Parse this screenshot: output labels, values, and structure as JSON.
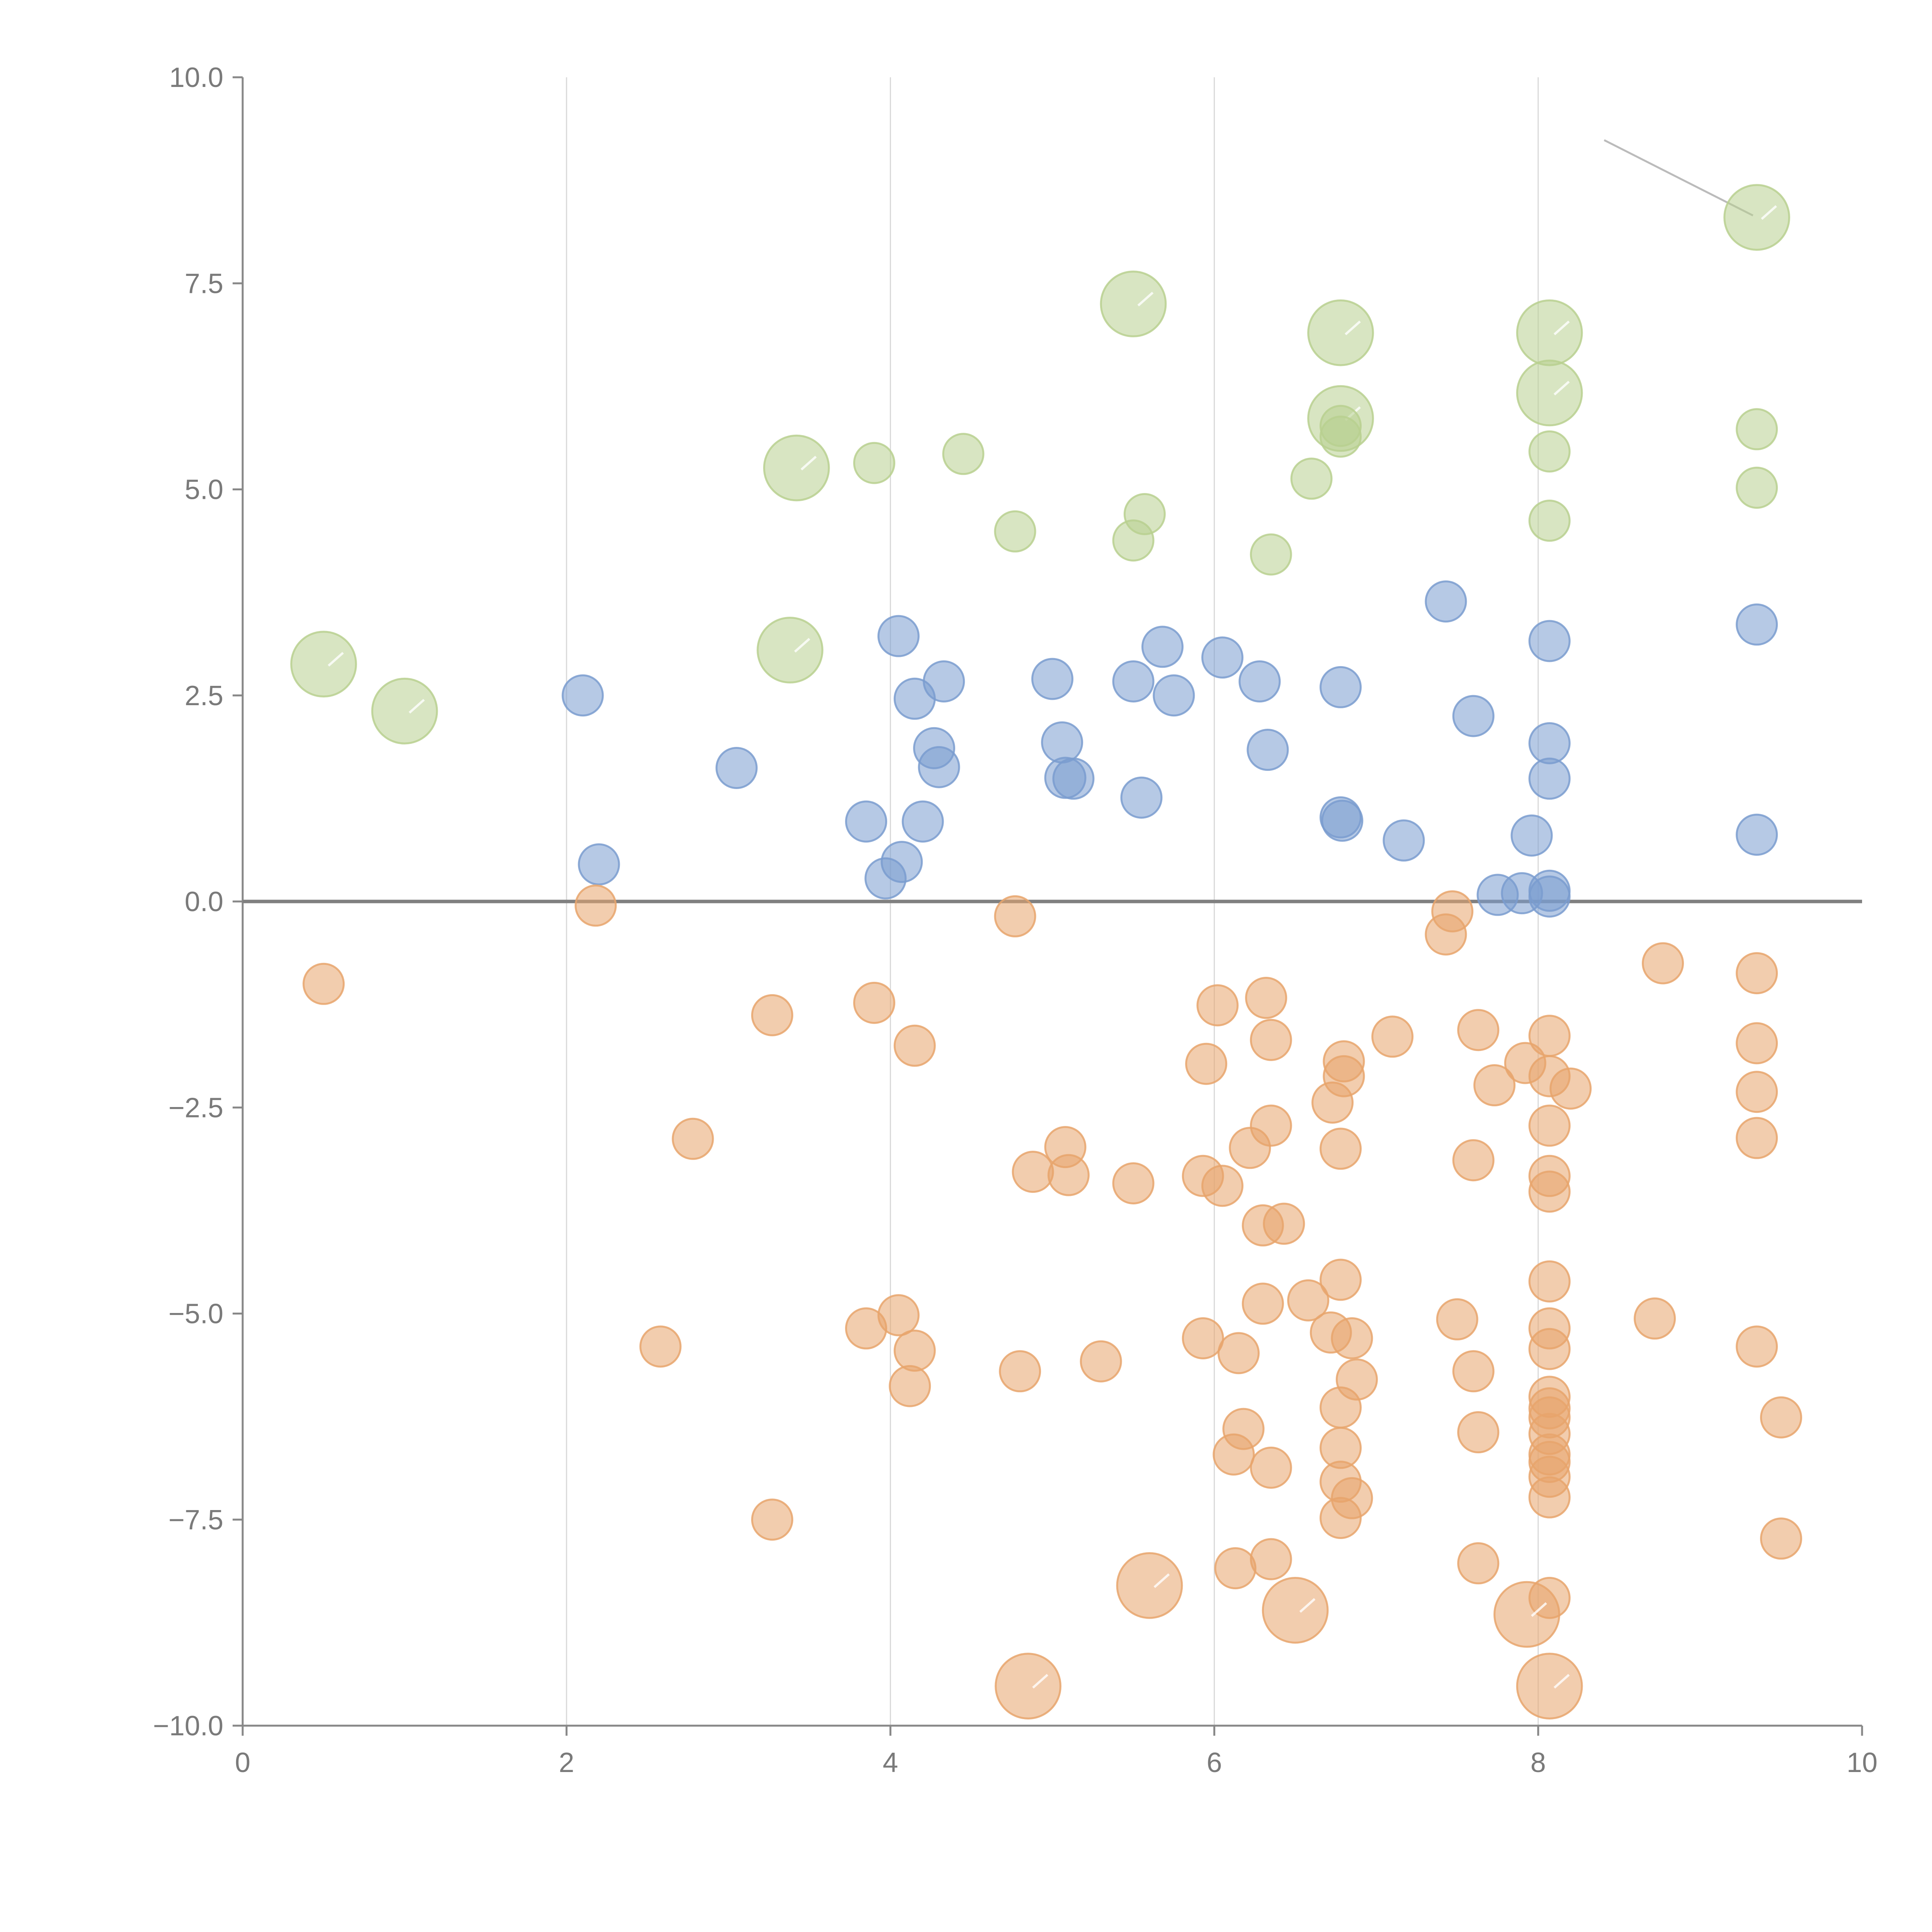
{
  "chart_data": {
    "type": "scatter",
    "title": "",
    "xlabel": "",
    "ylabel": "",
    "xlim": [
      0,
      10
    ],
    "ylim": [
      -10,
      10
    ],
    "grid": "vertical",
    "x_ticks": [
      "0",
      "2",
      "4",
      "6",
      "8",
      "10"
    ],
    "y_ticks": [
      "10.0",
      "7.5",
      "5.0",
      "2.5",
      "0.0",
      "−2.5",
      "−5.0",
      "−7.5",
      "−10.0"
    ],
    "series": [
      {
        "name": "blue",
        "color": "#7a9ccf",
        "points": [
          [
            2.1,
            2.5,
            1
          ],
          [
            2.2,
            0.45,
            1
          ],
          [
            3.05,
            1.62,
            1
          ],
          [
            3.85,
            0.97,
            1
          ],
          [
            3.97,
            0.28,
            1
          ],
          [
            4.05,
            3.22,
            1
          ],
          [
            4.07,
            0.48,
            1
          ],
          [
            4.15,
            2.46,
            1
          ],
          [
            4.2,
            0.97,
            1
          ],
          [
            4.27,
            1.86,
            1
          ],
          [
            4.3,
            1.63,
            1
          ],
          [
            4.33,
            2.67,
            1
          ],
          [
            5.0,
            2.7,
            1
          ],
          [
            5.06,
            1.93,
            1
          ],
          [
            5.08,
            1.5,
            1
          ],
          [
            5.13,
            1.49,
            1
          ],
          [
            5.5,
            2.67,
            1
          ],
          [
            5.55,
            1.26,
            1
          ],
          [
            5.68,
            3.09,
            1
          ],
          [
            5.75,
            2.5,
            1
          ],
          [
            6.05,
            2.96,
            1
          ],
          [
            6.28,
            2.67,
            1
          ],
          [
            6.33,
            1.84,
            1
          ],
          [
            6.78,
            2.6,
            1
          ],
          [
            6.78,
            1.02,
            1
          ],
          [
            6.79,
            0.98,
            1
          ],
          [
            7.17,
            0.74,
            1
          ],
          [
            7.43,
            3.64,
            1
          ],
          [
            7.6,
            2.25,
            1
          ],
          [
            7.75,
            0.08,
            1
          ],
          [
            7.9,
            0.1,
            1
          ],
          [
            7.96,
            0.8,
            1
          ],
          [
            8.07,
            3.16,
            1
          ],
          [
            8.07,
            1.92,
            1
          ],
          [
            8.07,
            1.49,
            1
          ],
          [
            8.07,
            0.13,
            1
          ],
          [
            8.07,
            0.06,
            1
          ],
          [
            9.35,
            3.36,
            1
          ],
          [
            9.35,
            0.81,
            1
          ]
        ]
      },
      {
        "name": "orange",
        "color": "#e8a46c",
        "points": [
          [
            0.5,
            -1.0,
            1
          ],
          [
            2.18,
            -0.05,
            1
          ],
          [
            2.58,
            -5.4,
            1
          ],
          [
            2.78,
            -2.88,
            1
          ],
          [
            3.27,
            -1.38,
            1
          ],
          [
            3.27,
            -7.5,
            1
          ],
          [
            3.85,
            -5.18,
            1
          ],
          [
            3.9,
            -1.23,
            1
          ],
          [
            4.05,
            -5.02,
            1
          ],
          [
            4.12,
            -5.88,
            1
          ],
          [
            4.15,
            -5.45,
            1
          ],
          [
            4.15,
            -1.75,
            1
          ],
          [
            4.77,
            -0.18,
            1
          ],
          [
            4.8,
            -5.7,
            1
          ],
          [
            4.88,
            -3.28,
            1
          ],
          [
            5.08,
            -2.98,
            1
          ],
          [
            5.1,
            -3.32,
            1
          ],
          [
            5.3,
            -5.58,
            1
          ],
          [
            5.5,
            -3.42,
            1
          ],
          [
            5.93,
            -3.33,
            1
          ],
          [
            5.93,
            -5.3,
            1
          ],
          [
            5.95,
            -1.97,
            1
          ],
          [
            6.02,
            -1.26,
            1
          ],
          [
            6.05,
            -3.45,
            1
          ],
          [
            6.12,
            -6.71,
            1
          ],
          [
            6.13,
            -8.09,
            1
          ],
          [
            6.15,
            -5.48,
            1
          ],
          [
            6.18,
            -6.4,
            1
          ],
          [
            6.22,
            -2.99,
            1
          ],
          [
            6.3,
            -3.93,
            1
          ],
          [
            6.3,
            -4.88,
            1
          ],
          [
            6.32,
            -1.17,
            1
          ],
          [
            6.35,
            -1.68,
            1
          ],
          [
            6.35,
            -2.72,
            1
          ],
          [
            6.35,
            -6.87,
            1
          ],
          [
            6.35,
            -7.98,
            1
          ],
          [
            6.43,
            -3.91,
            1
          ],
          [
            6.58,
            -4.84,
            1
          ],
          [
            6.72,
            -5.23,
            1
          ],
          [
            6.73,
            -2.44,
            1
          ],
          [
            6.78,
            -4.59,
            1
          ],
          [
            6.78,
            -3.0,
            1
          ],
          [
            6.78,
            -6.14,
            1
          ],
          [
            6.78,
            -6.63,
            1
          ],
          [
            6.78,
            -7.04,
            1
          ],
          [
            6.78,
            -7.48,
            1
          ],
          [
            6.8,
            -1.94,
            1
          ],
          [
            6.8,
            -2.12,
            1
          ],
          [
            6.85,
            -5.3,
            1
          ],
          [
            6.85,
            -7.24,
            1
          ],
          [
            6.88,
            -5.8,
            1
          ],
          [
            7.1,
            -1.64,
            1
          ],
          [
            7.43,
            -0.4,
            1
          ],
          [
            7.47,
            -0.12,
            1
          ],
          [
            7.5,
            -5.07,
            1
          ],
          [
            7.6,
            -3.14,
            1
          ],
          [
            7.6,
            -5.7,
            1
          ],
          [
            7.63,
            -1.56,
            1
          ],
          [
            7.63,
            -6.44,
            1
          ],
          [
            7.63,
            -8.03,
            1
          ],
          [
            7.73,
            -2.23,
            1
          ],
          [
            7.92,
            -1.96,
            1
          ],
          [
            8.07,
            -1.63,
            1
          ],
          [
            8.07,
            -2.12,
            1
          ],
          [
            8.07,
            -2.72,
            1
          ],
          [
            8.07,
            -3.33,
            1
          ],
          [
            8.07,
            -3.52,
            1
          ],
          [
            8.07,
            -4.61,
            1
          ],
          [
            8.07,
            -5.18,
            1
          ],
          [
            8.07,
            -5.43,
            1
          ],
          [
            8.07,
            -6.01,
            1
          ],
          [
            8.07,
            -6.15,
            1
          ],
          [
            8.07,
            -6.26,
            1
          ],
          [
            8.07,
            -6.46,
            1
          ],
          [
            8.07,
            -6.71,
            1
          ],
          [
            8.07,
            -6.8,
            1
          ],
          [
            8.07,
            -6.98,
            1
          ],
          [
            8.07,
            -7.23,
            1
          ],
          [
            8.07,
            -8.45,
            1
          ],
          [
            8.2,
            -2.27,
            1
          ],
          [
            8.72,
            -5.06,
            1
          ],
          [
            8.77,
            -0.75,
            1
          ],
          [
            9.35,
            -0.87,
            1
          ],
          [
            9.35,
            -1.72,
            1
          ],
          [
            9.35,
            -2.31,
            1
          ],
          [
            9.35,
            -2.87,
            1
          ],
          [
            9.35,
            -5.4,
            1
          ],
          [
            9.5,
            -6.26,
            1
          ],
          [
            9.5,
            -7.73,
            1
          ],
          [
            4.85,
            -9.52,
            2.6
          ],
          [
            5.6,
            -8.3,
            2.6
          ],
          [
            6.5,
            -8.6,
            2.6
          ],
          [
            7.93,
            -8.65,
            2.6
          ],
          [
            8.07,
            -9.52,
            2.6
          ]
        ]
      },
      {
        "name": "green",
        "color": "#b8d08f",
        "points": [
          [
            0.5,
            2.88,
            2.6
          ],
          [
            1.0,
            2.31,
            2.6
          ],
          [
            3.38,
            3.05,
            2.6
          ],
          [
            3.42,
            5.26,
            2.6
          ],
          [
            5.5,
            7.25,
            2.6
          ],
          [
            6.78,
            6.9,
            2.6
          ],
          [
            6.78,
            5.86,
            2.6
          ],
          [
            8.07,
            6.9,
            2.6
          ],
          [
            8.07,
            6.17,
            2.6
          ],
          [
            9.35,
            8.3,
            2.6
          ],
          [
            3.9,
            5.32,
            1
          ],
          [
            4.45,
            5.43,
            1
          ],
          [
            4.77,
            4.49,
            1
          ],
          [
            5.5,
            4.38,
            1
          ],
          [
            5.57,
            4.7,
            1
          ],
          [
            6.35,
            4.21,
            1
          ],
          [
            6.6,
            5.13,
            1
          ],
          [
            6.78,
            5.77,
            1
          ],
          [
            6.78,
            5.64,
            1
          ],
          [
            8.07,
            5.46,
            1
          ],
          [
            8.07,
            4.62,
            1
          ],
          [
            9.35,
            5.73,
            1
          ],
          [
            9.35,
            5.02,
            1
          ]
        ]
      }
    ]
  }
}
